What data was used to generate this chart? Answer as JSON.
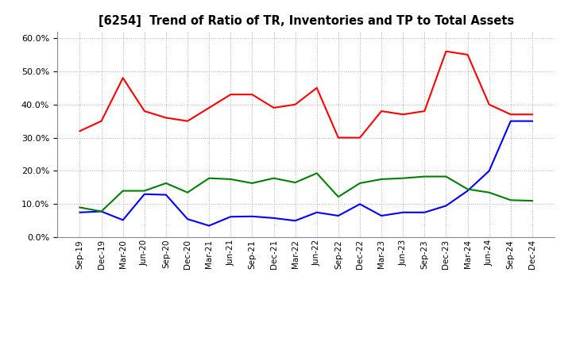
{
  "title": "[6254]  Trend of Ratio of TR, Inventories and TP to Total Assets",
  "x_labels": [
    "Sep-19",
    "Dec-19",
    "Mar-20",
    "Jun-20",
    "Sep-20",
    "Dec-20",
    "Mar-21",
    "Jun-21",
    "Sep-21",
    "Dec-21",
    "Mar-22",
    "Jun-22",
    "Sep-22",
    "Dec-22",
    "Mar-23",
    "Jun-23",
    "Sep-23",
    "Dec-23",
    "Mar-24",
    "Jun-24",
    "Sep-24",
    "Dec-24"
  ],
  "trade_receivables": [
    0.32,
    0.35,
    0.48,
    0.38,
    0.36,
    0.35,
    0.39,
    0.43,
    0.43,
    0.39,
    0.4,
    0.45,
    0.3,
    0.3,
    0.38,
    0.37,
    0.38,
    0.56,
    0.55,
    0.4,
    0.37,
    0.37
  ],
  "inventories": [
    0.075,
    0.078,
    0.052,
    0.13,
    0.128,
    0.055,
    0.035,
    0.062,
    0.063,
    0.058,
    0.05,
    0.075,
    0.065,
    0.1,
    0.065,
    0.075,
    0.075,
    0.095,
    0.14,
    0.2,
    0.35,
    0.35
  ],
  "trade_payables": [
    0.09,
    0.078,
    0.14,
    0.14,
    0.163,
    0.135,
    0.178,
    0.175,
    0.163,
    0.178,
    0.165,
    0.193,
    0.122,
    0.163,
    0.175,
    0.178,
    0.183,
    0.183,
    0.145,
    0.135,
    0.112,
    0.11
  ],
  "tr_color": "#ff0000",
  "inv_color": "#0000ff",
  "tp_color": "#008000",
  "ylim": [
    0.0,
    0.62
  ],
  "yticks": [
    0.0,
    0.1,
    0.2,
    0.3,
    0.4,
    0.5,
    0.6
  ],
  "grid_color": "#b0b0b0",
  "bg_color": "#ffffff",
  "plot_bg_color": "#ffffff"
}
